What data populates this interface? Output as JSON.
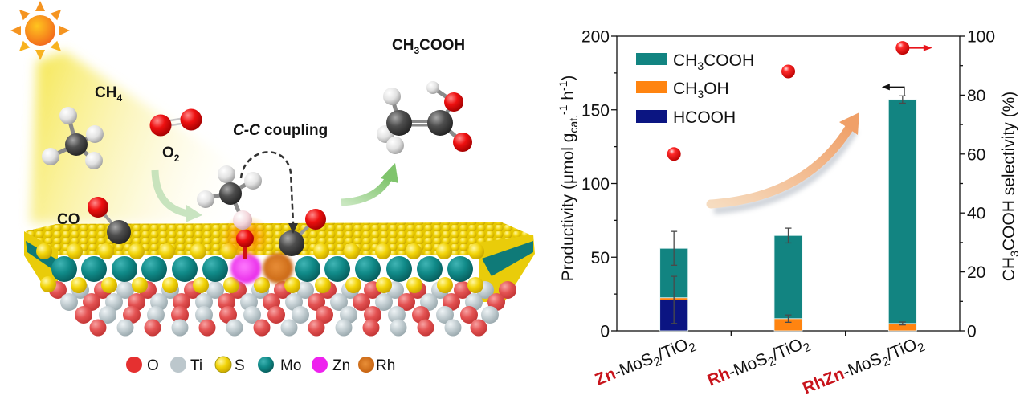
{
  "illustration": {
    "labels": {
      "ch4": {
        "main": "CH",
        "sub": "4"
      },
      "o2": {
        "main": "O",
        "sub": "2"
      },
      "co": "CO",
      "cc_coupling": {
        "italic": "C-C",
        "rest": " coupling"
      },
      "product": {
        "main": "CH",
        "sub": "3",
        "rest": "COOH"
      }
    },
    "atom_legend": [
      {
        "label": "O",
        "color": "#e53030"
      },
      {
        "label": "Ti",
        "color": "#bcc7cc"
      },
      {
        "label": "S",
        "color": "#e6d81c"
      },
      {
        "label": "Mo",
        "color": "#0f7f80"
      },
      {
        "label": "Zn",
        "color": "#ee22ee"
      },
      {
        "label": "Rh",
        "color": "#e07b1a"
      }
    ],
    "icons": [
      "sun-icon",
      "light-beam",
      "reaction-arrow",
      "dashed-coupling-arrow"
    ]
  },
  "chart_data": {
    "type": "bar",
    "subtype": "stacked bar with scatter overlay (dual y-axis)",
    "title": "",
    "categories": [
      "Zn-MoS2/TiO2",
      "Rh-MoS2/TiO2",
      "RhZn-MoS2/TiO2"
    ],
    "category_labels": [
      {
        "prefix": "Zn",
        "a": "-MoS",
        "s1": "2",
        "b": "/TiO",
        "s2": "2"
      },
      {
        "prefix": "Rh",
        "a": "-MoS",
        "s1": "2",
        "b": "/TiO",
        "s2": "2"
      },
      {
        "prefix": "RhZn",
        "a": "-MoS",
        "s1": "2",
        "b": "/TiO",
        "s2": "2"
      }
    ],
    "series": [
      {
        "key": "hcooh",
        "name": "HCOOH",
        "type": "bar",
        "axis": "left",
        "color": "#0b1582",
        "values": [
          21,
          0,
          0
        ],
        "error": [
          16,
          0,
          0
        ]
      },
      {
        "key": "ch3oh",
        "name": "CH3OH",
        "type": "bar",
        "axis": "left",
        "color": "#ff8410",
        "values": [
          1.5,
          8.3,
          5
        ],
        "error": [
          0,
          2.5,
          1
        ]
      },
      {
        "key": "ch3cooh",
        "name": "CH3COOH",
        "type": "bar",
        "axis": "left",
        "color": "#128481",
        "values": [
          33.5,
          56.4,
          152
        ],
        "error": [
          11.5,
          5,
          2.5
        ]
      },
      {
        "key": "selectivity",
        "name": "CH3COOH selectivity",
        "type": "scatter",
        "axis": "right",
        "color": "#e8141b",
        "values": [
          60,
          88,
          96
        ]
      }
    ],
    "totals": [
      56,
      64.7,
      157
    ],
    "ylabel": "Productivity (μmol gcat.-1 h-1)",
    "ylabel_parts": [
      "Productivity (μmol g",
      "cat.",
      "-1",
      " h",
      "-1",
      ")"
    ],
    "y2label": "CH3COOH selectivity (%)",
    "y2label_parts": [
      "CH",
      "3",
      "COOH selectivity (%)"
    ],
    "xlabel": "",
    "ylim": [
      0,
      200
    ],
    "y2lim": [
      0,
      100
    ],
    "yticks": [
      0,
      50,
      100,
      150,
      200
    ],
    "y2ticks": [
      0,
      20,
      40,
      60,
      80,
      100
    ],
    "legend": [
      {
        "parts": [
          "CH",
          "3",
          "COOH"
        ],
        "color": "#128481"
      },
      {
        "parts": [
          "CH",
          "3",
          "OH"
        ],
        "color": "#ff8410"
      },
      {
        "parts": [
          "HCOOH",
          "",
          ""
        ],
        "color": "#0b1582"
      }
    ],
    "legend_position": "upper left",
    "grid": false,
    "annotations": [
      {
        "type": "axis-pointer",
        "target": "bars",
        "direction": "left",
        "color": "#111111"
      },
      {
        "type": "axis-pointer",
        "target": "selectivity",
        "direction": "right",
        "color": "#e8141b"
      },
      {
        "type": "trend-arrow",
        "direction": "up-right",
        "color": "#f2a878"
      }
    ]
  }
}
